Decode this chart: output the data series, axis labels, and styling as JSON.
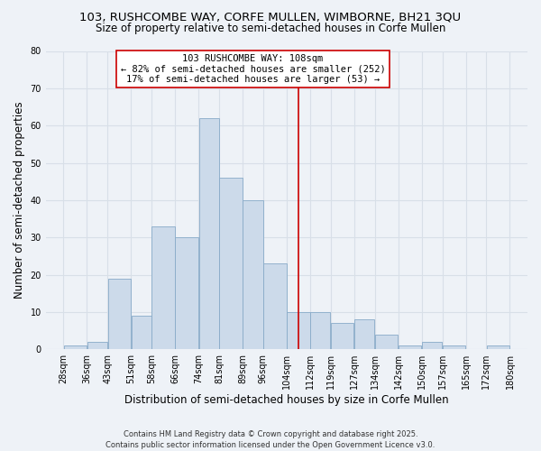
{
  "title_line1": "103, RUSHCOMBE WAY, CORFE MULLEN, WIMBORNE, BH21 3QU",
  "title_line2": "Size of property relative to semi-detached houses in Corfe Mullen",
  "xlabel": "Distribution of semi-detached houses by size in Corfe Mullen",
  "ylabel": "Number of semi-detached properties",
  "bin_labels": [
    "28sqm",
    "36sqm",
    "43sqm",
    "51sqm",
    "58sqm",
    "66sqm",
    "74sqm",
    "81sqm",
    "89sqm",
    "96sqm",
    "104sqm",
    "112sqm",
    "119sqm",
    "127sqm",
    "134sqm",
    "142sqm",
    "150sqm",
    "157sqm",
    "165sqm",
    "172sqm",
    "180sqm"
  ],
  "bar_values": [
    1,
    2,
    19,
    9,
    33,
    30,
    62,
    46,
    40,
    23,
    10,
    10,
    7,
    8,
    4,
    1,
    2,
    1,
    0,
    1
  ],
  "bar_left_edges": [
    28,
    36,
    43,
    51,
    58,
    66,
    74,
    81,
    89,
    96,
    104,
    112,
    119,
    127,
    134,
    142,
    150,
    157,
    165,
    172
  ],
  "bar_widths": [
    8,
    7,
    8,
    7,
    8,
    8,
    7,
    8,
    7,
    8,
    8,
    7,
    8,
    7,
    8,
    8,
    7,
    8,
    7,
    8
  ],
  "bar_color": "#ccdaea",
  "bar_edge_color": "#88aac8",
  "vline_x": 108,
  "vline_color": "#cc0000",
  "annotation_title": "103 RUSHCOMBE WAY: 108sqm",
  "annotation_line2": "← 82% of semi-detached houses are smaller (252)",
  "annotation_line3": "17% of semi-detached houses are larger (53) →",
  "annotation_box_color": "#ffffff",
  "annotation_box_edge": "#cc0000",
  "ylim": [
    0,
    80
  ],
  "yticks": [
    0,
    10,
    20,
    30,
    40,
    50,
    60,
    70,
    80
  ],
  "background_color": "#eef2f7",
  "grid_color": "#d8dfe8",
  "footer_line1": "Contains HM Land Registry data © Crown copyright and database right 2025.",
  "footer_line2": "Contains public sector information licensed under the Open Government Licence v3.0.",
  "title_fontsize": 9.5,
  "subtitle_fontsize": 8.5,
  "axis_label_fontsize": 8.5,
  "tick_fontsize": 7.0,
  "ann_fontsize": 7.5,
  "footer_fontsize": 6.0
}
